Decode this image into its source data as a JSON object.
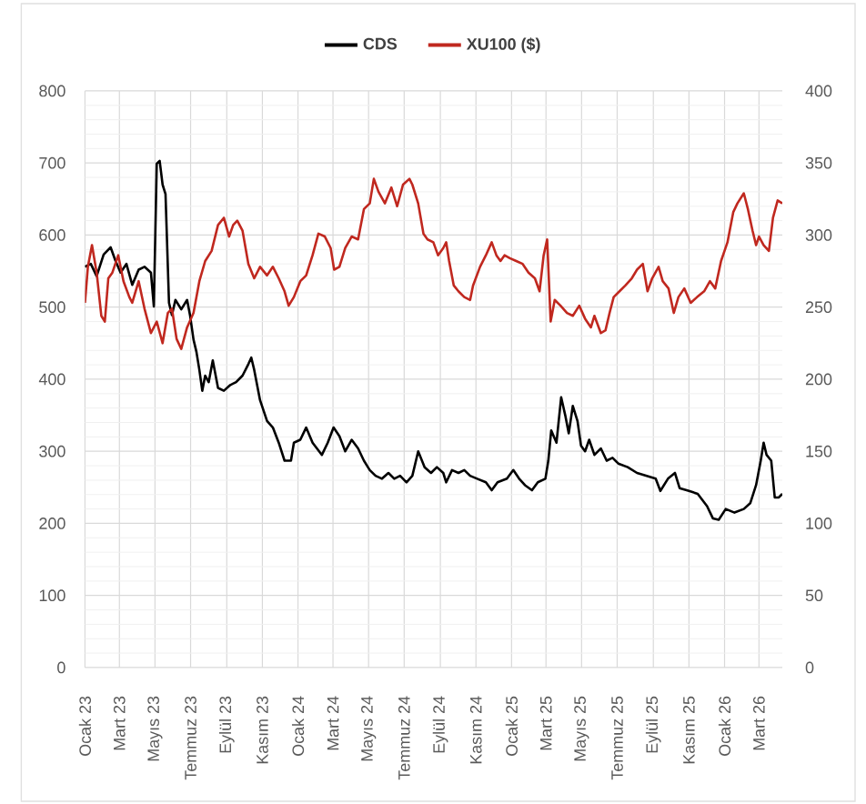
{
  "chart_data": {
    "type": "line",
    "series": [
      {
        "name": "CDS",
        "color": "#000000",
        "x": [
          "2023-01-01",
          "2023-01-11",
          "2023-01-21",
          "2023-02-02",
          "2023-02-14",
          "2023-02-22",
          "2023-03-03",
          "2023-03-13",
          "2023-03-23",
          "2023-04-03",
          "2023-04-13",
          "2023-04-24",
          "2023-04-29",
          "2023-05-04",
          "2023-05-09",
          "2023-05-14",
          "2023-05-19",
          "2023-05-25",
          "2023-05-30",
          "2023-06-05",
          "2023-06-15",
          "2023-06-25",
          "2023-06-30",
          "2023-07-06",
          "2023-07-11",
          "2023-07-16",
          "2023-07-21",
          "2023-07-26",
          "2023-08-01",
          "2023-08-08",
          "2023-08-17",
          "2023-08-27",
          "2023-09-07",
          "2023-09-17",
          "2023-09-28",
          "2023-10-08",
          "2023-10-13",
          "2023-10-18",
          "2023-10-28",
          "2023-11-09",
          "2023-11-19",
          "2023-11-29",
          "2023-12-09",
          "2023-12-20",
          "2023-12-25",
          "2024-01-05",
          "2024-01-15",
          "2024-01-26",
          "2024-02-11",
          "2024-02-21",
          "2024-03-02",
          "2024-03-12",
          "2024-03-22",
          "2024-04-02",
          "2024-04-13",
          "2024-04-23",
          "2024-05-03",
          "2024-05-13",
          "2024-05-24",
          "2024-06-04",
          "2024-06-14",
          "2024-06-24",
          "2024-07-05",
          "2024-07-15",
          "2024-07-25",
          "2024-08-05",
          "2024-08-16",
          "2024-08-26",
          "2024-09-06",
          "2024-09-11",
          "2024-09-21",
          "2024-10-02",
          "2024-10-12",
          "2024-10-22",
          "2024-11-03",
          "2024-11-18",
          "2024-11-28",
          "2024-12-08",
          "2024-12-24",
          "2025-01-04",
          "2025-01-14",
          "2025-01-24",
          "2025-02-05",
          "2025-02-15",
          "2025-02-28",
          "2025-03-05",
          "2025-03-10",
          "2025-03-19",
          "2025-03-27",
          "2025-04-03",
          "2025-04-09",
          "2025-04-16",
          "2025-04-24",
          "2025-04-30",
          "2025-05-07",
          "2025-05-14",
          "2025-05-23",
          "2025-06-03",
          "2025-06-13",
          "2025-06-23",
          "2025-07-03",
          "2025-07-19",
          "2025-08-04",
          "2025-08-20",
          "2025-09-05",
          "2025-09-13",
          "2025-09-26",
          "2025-10-08",
          "2025-10-16",
          "2025-11-01",
          "2025-11-16",
          "2025-12-02",
          "2025-12-12",
          "2025-12-22",
          "2026-01-03",
          "2026-01-18",
          "2026-02-03",
          "2026-02-14",
          "2026-02-24",
          "2026-03-04",
          "2026-03-09",
          "2026-03-14",
          "2026-03-22",
          "2026-03-28",
          "2026-04-04",
          "2026-04-10"
        ],
        "values": [
          556,
          560,
          543,
          573,
          583,
          565,
          548,
          560,
          531,
          552,
          556,
          548,
          501,
          699,
          703,
          670,
          657,
          506,
          489,
          510,
          497,
          510,
          489,
          455,
          438,
          413,
          384,
          405,
          396,
          426,
          388,
          384,
          392,
          396,
          405,
          421,
          430,
          413,
          371,
          342,
          333,
          312,
          287,
          287,
          312,
          316,
          333,
          312,
          295,
          312,
          333,
          321,
          300,
          316,
          304,
          287,
          274,
          266,
          262,
          270,
          262,
          266,
          257,
          266,
          300,
          278,
          270,
          278,
          270,
          257,
          274,
          270,
          274,
          266,
          262,
          257,
          246,
          257,
          262,
          274,
          262,
          253,
          246,
          257,
          262,
          287,
          329,
          312,
          375,
          350,
          325,
          363,
          342,
          308,
          300,
          316,
          295,
          304,
          287,
          291,
          283,
          278,
          270,
          266,
          262,
          245,
          262,
          270,
          249,
          245,
          241,
          224,
          207,
          205,
          220,
          215,
          220,
          228,
          253,
          287,
          312,
          295,
          287,
          236,
          236,
          241
        ]
      },
      {
        "name": "XU100 ($)",
        "color": "#c0281f",
        "axis": "y2",
        "x": [
          "2023-01-01",
          "2023-01-06",
          "2023-01-13",
          "2023-01-21",
          "2023-01-29",
          "2023-02-04",
          "2023-02-10",
          "2023-02-17",
          "2023-02-27",
          "2023-03-08",
          "2023-03-18",
          "2023-03-23",
          "2023-04-03",
          "2023-04-13",
          "2023-04-24",
          "2023-05-04",
          "2023-05-14",
          "2023-05-23",
          "2023-05-30",
          "2023-06-07",
          "2023-06-15",
          "2023-06-25",
          "2023-07-06",
          "2023-07-16",
          "2023-07-26",
          "2023-08-06",
          "2023-08-17",
          "2023-08-27",
          "2023-09-05",
          "2023-09-12",
          "2023-09-19",
          "2023-09-28",
          "2023-10-08",
          "2023-10-18",
          "2023-10-28",
          "2023-11-09",
          "2023-11-19",
          "2023-11-29",
          "2023-12-09",
          "2023-12-16",
          "2023-12-25",
          "2024-01-05",
          "2024-01-15",
          "2024-01-26",
          "2024-02-05",
          "2024-02-16",
          "2024-02-26",
          "2024-03-03",
          "2024-03-12",
          "2024-03-22",
          "2024-04-02",
          "2024-04-13",
          "2024-04-23",
          "2024-05-03",
          "2024-05-10",
          "2024-05-18",
          "2024-05-29",
          "2024-06-09",
          "2024-06-19",
          "2024-06-29",
          "2024-07-10",
          "2024-07-15",
          "2024-07-25",
          "2024-08-03",
          "2024-08-10",
          "2024-08-20",
          "2024-08-28",
          "2024-09-06",
          "2024-09-11",
          "2024-09-16",
          "2024-09-24",
          "2024-10-02",
          "2024-10-12",
          "2024-10-22",
          "2024-10-27",
          "2024-11-08",
          "2024-11-18",
          "2024-11-28",
          "2024-12-06",
          "2024-12-13",
          "2024-12-20",
          "2024-12-29",
          "2025-01-09",
          "2025-01-20",
          "2025-01-30",
          "2025-02-10",
          "2025-02-18",
          "2025-02-25",
          "2025-03-03",
          "2025-03-09",
          "2025-03-16",
          "2025-03-26",
          "2025-04-06",
          "2025-04-16",
          "2025-04-27",
          "2025-05-07",
          "2025-05-17",
          "2025-05-23",
          "2025-06-03",
          "2025-06-11",
          "2025-06-18",
          "2025-06-25",
          "2025-07-05",
          "2025-07-15",
          "2025-07-26",
          "2025-08-04",
          "2025-08-14",
          "2025-08-22",
          "2025-08-30",
          "2025-09-10",
          "2025-09-17",
          "2025-09-27",
          "2025-10-06",
          "2025-10-14",
          "2025-10-24",
          "2025-11-04",
          "2025-11-15",
          "2025-11-27",
          "2025-12-07",
          "2025-12-16",
          "2025-12-26",
          "2026-01-06",
          "2026-01-16",
          "2026-01-23",
          "2026-02-03",
          "2026-02-10",
          "2026-02-18",
          "2026-02-24",
          "2026-03-01",
          "2026-03-09",
          "2026-03-18",
          "2026-03-25",
          "2026-04-02",
          "2026-04-10"
        ],
        "values": [
          253,
          278,
          293,
          274,
          244,
          240,
          270,
          274,
          286,
          268,
          257,
          253,
          268,
          249,
          232,
          240,
          225,
          246,
          249,
          228,
          221,
          236,
          246,
          268,
          282,
          289,
          307,
          312,
          299,
          307,
          310,
          303,
          280,
          270,
          278,
          272,
          278,
          270,
          261,
          251,
          257,
          268,
          272,
          286,
          301,
          299,
          291,
          276,
          278,
          291,
          299,
          297,
          318,
          322,
          339,
          330,
          322,
          333,
          320,
          335,
          339,
          335,
          322,
          301,
          297,
          295,
          286,
          291,
          295,
          282,
          265,
          261,
          257,
          255,
          265,
          278,
          286,
          295,
          286,
          282,
          286,
          284,
          282,
          280,
          274,
          270,
          261,
          286,
          297,
          240,
          255,
          251,
          246,
          244,
          251,
          242,
          236,
          244,
          232,
          234,
          246,
          257,
          261,
          265,
          270,
          276,
          280,
          261,
          270,
          278,
          268,
          263,
          246,
          257,
          263,
          253,
          257,
          261,
          268,
          263,
          282,
          295,
          316,
          322,
          329,
          318,
          303,
          293,
          299,
          293,
          289,
          312,
          324,
          322
        ]
      }
    ],
    "xlim": [
      "2023-01-01",
      "2026-04-10"
    ],
    "xticks": [
      {
        "value": "2023-01-01",
        "label": "Ocak 23"
      },
      {
        "value": "2023-03-01",
        "label": "Mart 23"
      },
      {
        "value": "2023-05-01",
        "label": "Mayıs 23"
      },
      {
        "value": "2023-07-01",
        "label": "Temmuz 23"
      },
      {
        "value": "2023-09-01",
        "label": "Eylül 23"
      },
      {
        "value": "2023-11-01",
        "label": "Kasım 23"
      },
      {
        "value": "2024-01-01",
        "label": "Ocak 24"
      },
      {
        "value": "2024-03-01",
        "label": "Mart 24"
      },
      {
        "value": "2024-05-01",
        "label": "Mayıs 24"
      },
      {
        "value": "2024-07-01",
        "label": "Temmuz 24"
      },
      {
        "value": "2024-09-01",
        "label": "Eylül 24"
      },
      {
        "value": "2024-11-01",
        "label": "Kasım 24"
      },
      {
        "value": "2025-01-01",
        "label": "Ocak 25"
      },
      {
        "value": "2025-03-01",
        "label": "Mart 25"
      },
      {
        "value": "2025-05-01",
        "label": "Mayıs 25"
      },
      {
        "value": "2025-07-01",
        "label": "Temmuz 25"
      },
      {
        "value": "2025-09-01",
        "label": "Eylül 25"
      },
      {
        "value": "2025-11-01",
        "label": "Kasım 25"
      },
      {
        "value": "2026-01-01",
        "label": "Ocak 26"
      },
      {
        "value": "2026-03-01",
        "label": "Mart 26"
      }
    ],
    "ylim": [
      0,
      800
    ],
    "yticks": [
      0,
      100,
      200,
      300,
      400,
      500,
      600,
      700,
      800
    ],
    "y2lim": [
      0,
      400
    ],
    "y2ticks": [
      0,
      50,
      100,
      150,
      200,
      250,
      300,
      350,
      400
    ],
    "grid": true,
    "legend": "top"
  }
}
